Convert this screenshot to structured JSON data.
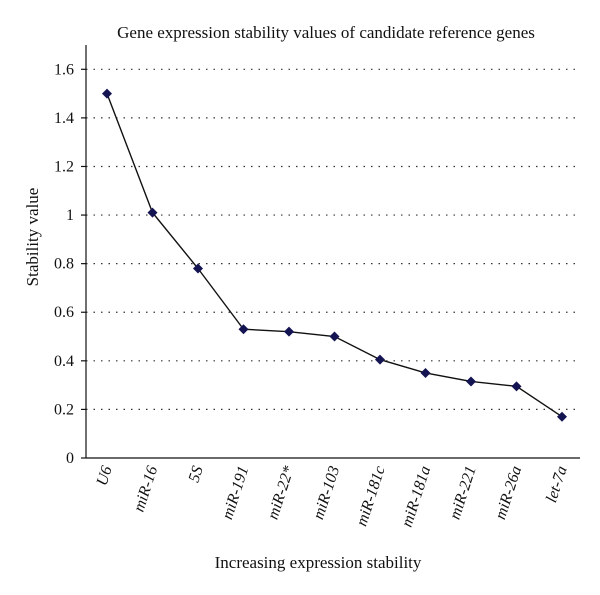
{
  "chart_data": {
    "type": "line",
    "title": "Gene expression stability values of candidate reference genes",
    "xlabel": "Increasing expression stability",
    "ylabel": "Stability value",
    "ylim": [
      0,
      1.7
    ],
    "yticks": [
      0,
      0.2,
      0.4,
      0.6,
      0.8,
      1,
      1.2,
      1.4,
      1.6
    ],
    "ytick_labels": [
      "0",
      "0.2",
      "0.4",
      "0.6",
      "0.8",
      "1",
      "1.2",
      "1.4",
      "1.6"
    ],
    "grid": "horizontal dotted",
    "categories": [
      "U6",
      "miR-16",
      "5S",
      "miR-191",
      "miR-22*",
      "miR-103",
      "miR-181c",
      "miR-181a",
      "miR-221",
      "miR-26a",
      "let-7a"
    ],
    "series": [
      {
        "values": [
          1.5,
          1.01,
          0.78,
          0.53,
          0.52,
          0.5,
          0.405,
          0.35,
          0.315,
          0.295,
          0.17
        ],
        "color": "#141452",
        "marker": "diamond"
      }
    ]
  }
}
